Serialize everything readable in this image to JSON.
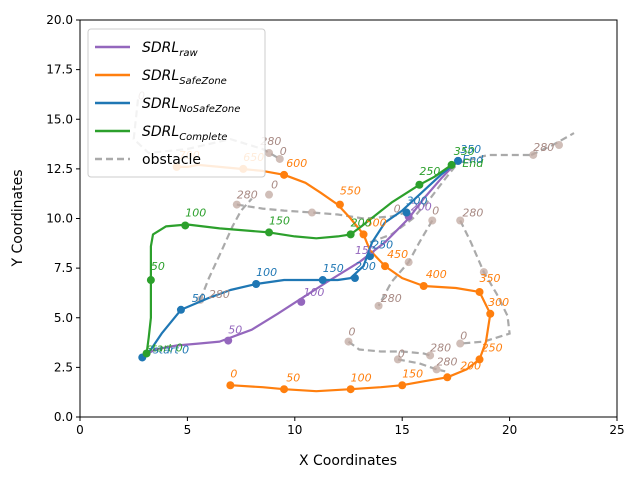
{
  "chart_data": {
    "type": "line",
    "xlabel": "X Coordinates",
    "ylabel": "Y Coordinates",
    "xlim": [
      0,
      25
    ],
    "ylim": [
      0,
      20
    ],
    "xticks": [
      "0",
      "5",
      "10",
      "15",
      "20",
      "25"
    ],
    "yticks": [
      "0.0",
      "2.5",
      "5.0",
      "7.5",
      "10.0",
      "12.5",
      "15.0",
      "17.5",
      "20.0"
    ],
    "grid": false,
    "legend": {
      "placement": "top-left",
      "entries": [
        {
          "base": "SDRL",
          "sub": "raw",
          "color": "#9467bd",
          "dash": false
        },
        {
          "base": "SDRL",
          "sub": "SafeZone",
          "color": "#ff7f0e",
          "dash": false
        },
        {
          "base": "SDRL",
          "sub": "NoSafeZone",
          "color": "#1f77b4",
          "dash": false
        },
        {
          "base": "SDRL",
          "sub": "Complete",
          "color": "#2ca02c",
          "dash": false
        },
        {
          "base": "obstacle",
          "sub": "",
          "color": "#aaaaaa",
          "dash": true
        }
      ]
    },
    "series": [
      {
        "key": "raw",
        "color": "#9467bd",
        "points": [
          [
            3.0,
            3.1
          ],
          [
            3.5,
            3.4
          ],
          [
            4.5,
            3.6
          ],
          [
            5.5,
            3.7
          ],
          [
            6.5,
            3.8
          ],
          [
            8.0,
            4.4
          ],
          [
            9.2,
            5.2
          ],
          [
            10.2,
            5.9
          ],
          [
            11.5,
            6.8
          ],
          [
            13.0,
            7.8
          ],
          [
            14.2,
            8.8
          ],
          [
            15.3,
            10.0
          ],
          [
            16.0,
            11.0
          ],
          [
            16.8,
            12.0
          ],
          [
            17.6,
            12.9
          ]
        ],
        "markers": [
          [
            6.9,
            3.85
          ],
          [
            10.3,
            5.8
          ],
          [
            15.3,
            10.1
          ],
          [
            17.6,
            12.9
          ]
        ],
        "labels": [
          {
            "t": "50",
            "x": 6.9,
            "y": 4.2
          },
          {
            "t": "100",
            "x": 10.4,
            "y": 6.1
          },
          {
            "t": "150",
            "x": 12.8,
            "y": 8.2
          },
          {
            "t": "200",
            "x": 15.4,
            "y": 10.4
          }
        ]
      },
      {
        "key": "safezone",
        "color": "#ff7f0e",
        "points": [
          [
            7.0,
            1.6
          ],
          [
            8.5,
            1.5
          ],
          [
            9.5,
            1.4
          ],
          [
            11.0,
            1.3
          ],
          [
            12.6,
            1.4
          ],
          [
            14.0,
            1.5
          ],
          [
            15.0,
            1.6
          ],
          [
            16.0,
            1.8
          ],
          [
            17.1,
            2.0
          ],
          [
            18.0,
            2.4
          ],
          [
            18.6,
            2.9
          ],
          [
            18.9,
            3.8
          ],
          [
            19.1,
            5.2
          ],
          [
            18.6,
            6.3
          ],
          [
            17.5,
            6.5
          ],
          [
            16.0,
            6.6
          ],
          [
            15.0,
            7.0
          ],
          [
            14.2,
            7.6
          ],
          [
            13.5,
            8.4
          ],
          [
            13.2,
            9.2
          ],
          [
            12.6,
            10.0
          ],
          [
            12.0,
            10.7
          ],
          [
            11.2,
            11.3
          ],
          [
            10.5,
            11.8
          ],
          [
            9.5,
            12.2
          ],
          [
            8.5,
            12.4
          ],
          [
            7.5,
            12.5
          ],
          [
            6.5,
            12.6
          ],
          [
            5.5,
            12.7
          ],
          [
            5.0,
            12.6
          ],
          [
            4.5,
            12.6
          ]
        ],
        "markers": [
          [
            7.0,
            1.6
          ],
          [
            9.5,
            1.4
          ],
          [
            12.6,
            1.4
          ],
          [
            15.0,
            1.6
          ],
          [
            17.1,
            2.0
          ],
          [
            18.6,
            2.9
          ],
          [
            19.1,
            5.2
          ],
          [
            18.6,
            6.3
          ],
          [
            16.0,
            6.6
          ],
          [
            14.2,
            7.6
          ],
          [
            13.2,
            9.2
          ],
          [
            12.1,
            10.7
          ],
          [
            9.5,
            12.2
          ],
          [
            7.6,
            12.5
          ],
          [
            4.5,
            12.6
          ]
        ],
        "labels": [
          {
            "t": "0",
            "x": 7.0,
            "y": 2.0
          },
          {
            "t": "50",
            "x": 9.6,
            "y": 1.8
          },
          {
            "t": "100",
            "x": 12.6,
            "y": 1.8
          },
          {
            "t": "150",
            "x": 15.0,
            "y": 2.0
          },
          {
            "t": "200",
            "x": 17.7,
            "y": 2.4
          },
          {
            "t": "250",
            "x": 18.7,
            "y": 3.3
          },
          {
            "t": "300",
            "x": 19.0,
            "y": 5.6
          },
          {
            "t": "350",
            "x": 18.6,
            "y": 6.8
          },
          {
            "t": "400",
            "x": 16.1,
            "y": 7.0
          },
          {
            "t": "450",
            "x": 14.3,
            "y": 8.0
          },
          {
            "t": "500",
            "x": 13.3,
            "y": 9.6
          },
          {
            "t": "550",
            "x": 12.1,
            "y": 11.2
          },
          {
            "t": "600",
            "x": 9.6,
            "y": 12.6
          },
          {
            "t": "650",
            "x": 7.6,
            "y": 12.9
          },
          {
            "t": "700",
            "x": 4.6,
            "y": 13.0
          }
        ]
      },
      {
        "key": "nosafezone",
        "color": "#1f77b4",
        "points": [
          [
            2.9,
            3.0
          ],
          [
            3.3,
            3.4
          ],
          [
            3.8,
            4.2
          ],
          [
            4.7,
            5.4
          ],
          [
            6.0,
            6.0
          ],
          [
            7.0,
            6.4
          ],
          [
            8.2,
            6.7
          ],
          [
            9.5,
            6.9
          ],
          [
            10.5,
            6.9
          ],
          [
            11.3,
            6.9
          ],
          [
            12.0,
            6.9
          ],
          [
            12.6,
            7.0
          ],
          [
            13.2,
            7.6
          ],
          [
            13.6,
            8.8
          ],
          [
            14.2,
            9.8
          ],
          [
            15.0,
            10.4
          ],
          [
            15.8,
            11.2
          ],
          [
            16.8,
            12.2
          ],
          [
            17.6,
            12.9
          ]
        ],
        "markers": [
          [
            2.9,
            3.0
          ],
          [
            4.7,
            5.4
          ],
          [
            8.2,
            6.7
          ],
          [
            11.3,
            6.9
          ],
          [
            12.8,
            7.0
          ],
          [
            13.5,
            8.1
          ],
          [
            15.2,
            10.3
          ],
          [
            17.6,
            12.9
          ]
        ],
        "labels": [
          {
            "t": "start 0",
            "x": 3.4,
            "y": 3.2
          },
          {
            "t": "50",
            "x": 5.2,
            "y": 5.8
          },
          {
            "t": "100",
            "x": 8.2,
            "y": 7.1
          },
          {
            "t": "150",
            "x": 11.3,
            "y": 7.3
          },
          {
            "t": "200",
            "x": 12.8,
            "y": 7.4
          },
          {
            "t": "250",
            "x": 13.6,
            "y": 8.5
          },
          {
            "t": "300",
            "x": 15.2,
            "y": 10.7
          },
          {
            "t": "350",
            "x": 17.7,
            "y": 13.3
          },
          {
            "t": "End",
            "x": 17.8,
            "y": 12.8
          }
        ]
      },
      {
        "key": "complete",
        "color": "#2ca02c",
        "points": [
          [
            3.1,
            3.2
          ],
          [
            3.2,
            4.0
          ],
          [
            3.3,
            5.0
          ],
          [
            3.3,
            6.5
          ],
          [
            3.3,
            7.8
          ],
          [
            3.3,
            8.6
          ],
          [
            3.4,
            9.2
          ],
          [
            4.0,
            9.6
          ],
          [
            5.0,
            9.7
          ],
          [
            6.5,
            9.5
          ],
          [
            8.8,
            9.3
          ],
          [
            10.0,
            9.1
          ],
          [
            11.0,
            9.0
          ],
          [
            12.0,
            9.1
          ],
          [
            12.6,
            9.2
          ],
          [
            13.1,
            9.6
          ],
          [
            13.8,
            10.2
          ],
          [
            14.5,
            10.8
          ],
          [
            15.8,
            11.7
          ],
          [
            16.5,
            12.1
          ],
          [
            17.3,
            12.7
          ]
        ],
        "markers": [
          [
            3.1,
            3.2
          ],
          [
            3.3,
            6.9
          ],
          [
            4.9,
            9.65
          ],
          [
            8.8,
            9.3
          ],
          [
            12.6,
            9.2
          ],
          [
            15.8,
            11.7
          ],
          [
            17.3,
            12.7
          ]
        ],
        "labels": [
          {
            "t": "start 0",
            "x": 3.1,
            "y": 3.3
          },
          {
            "t": "50",
            "x": 3.3,
            "y": 7.4
          },
          {
            "t": "100",
            "x": 4.9,
            "y": 10.1
          },
          {
            "t": "150",
            "x": 8.8,
            "y": 9.7
          },
          {
            "t": "200",
            "x": 12.6,
            "y": 9.6
          },
          {
            "t": "250",
            "x": 15.8,
            "y": 12.2
          },
          {
            "t": "350",
            "x": 17.4,
            "y": 13.2
          },
          {
            "t": "End",
            "x": 17.8,
            "y": 12.6
          }
        ]
      }
    ],
    "obstacles": [
      {
        "points": [
          [
            2.7,
            16.0
          ],
          [
            2.5,
            14.0
          ],
          [
            3.2,
            13.3
          ],
          [
            5.0,
            13.5
          ],
          [
            7.0,
            14.0
          ],
          [
            8.5,
            13.5
          ],
          [
            9.3,
            13.0
          ]
        ],
        "markers": [
          [
            9.3,
            13.0
          ],
          [
            8.8,
            13.3
          ]
        ],
        "labels": [
          {
            "t": "0",
            "x": 2.7,
            "y": 16.0
          },
          {
            "t": "280",
            "x": 8.4,
            "y": 13.7
          },
          {
            "t": "0",
            "x": 9.3,
            "y": 13.2
          }
        ]
      },
      {
        "points": [
          [
            7.3,
            10.7
          ],
          [
            8.5,
            10.5
          ],
          [
            9.5,
            10.4
          ],
          [
            10.8,
            10.3
          ],
          [
            12.0,
            10.2
          ],
          [
            13.2,
            10.0
          ],
          [
            14.5,
            10.1
          ],
          [
            15.2,
            10.3
          ]
        ],
        "markers": [
          [
            7.3,
            10.7
          ],
          [
            8.8,
            11.2
          ],
          [
            10.8,
            10.3
          ],
          [
            15.2,
            10.3
          ]
        ],
        "labels": [
          {
            "t": "280",
            "x": 7.3,
            "y": 11.0
          },
          {
            "t": "0",
            "x": 8.9,
            "y": 11.5
          },
          {
            "t": "0",
            "x": 14.6,
            "y": 10.3
          }
        ]
      },
      {
        "points": [
          [
            21.0,
            13.2
          ],
          [
            22.0,
            13.7
          ],
          [
            23.0,
            14.3
          ]
        ],
        "markers": [
          [
            21.1,
            13.2
          ],
          [
            22.3,
            13.7
          ]
        ],
        "labels": [
          {
            "t": "280",
            "x": 21.1,
            "y": 13.4
          }
        ]
      },
      {
        "points": [
          [
            13.5,
            8.8
          ],
          [
            14.5,
            9.2
          ],
          [
            15.5,
            10.0
          ],
          [
            16.3,
            11.0
          ],
          [
            17.0,
            12.0
          ],
          [
            17.6,
            12.8
          ],
          [
            19.0,
            13.2
          ],
          [
            21.1,
            13.2
          ]
        ],
        "markers": [],
        "labels": []
      },
      {
        "points": [
          [
            16.4,
            9.9
          ],
          [
            15.8,
            8.8
          ],
          [
            15.3,
            7.8
          ],
          [
            14.5,
            6.8
          ],
          [
            13.9,
            5.6
          ]
        ],
        "markers": [
          [
            16.4,
            9.9
          ],
          [
            15.3,
            7.8
          ],
          [
            13.9,
            5.6
          ]
        ],
        "labels": [
          {
            "t": "0",
            "x": 16.4,
            "y": 10.2
          },
          {
            "t": "280",
            "x": 14.0,
            "y": 5.8
          }
        ]
      },
      {
        "points": [
          [
            17.7,
            9.9
          ],
          [
            18.2,
            8.8
          ],
          [
            18.8,
            7.3
          ],
          [
            19.4,
            6.2
          ],
          [
            19.9,
            5.1
          ],
          [
            20.0,
            4.2
          ],
          [
            18.8,
            3.8
          ],
          [
            17.7,
            3.7
          ]
        ],
        "markers": [
          [
            17.7,
            9.9
          ],
          [
            18.8,
            7.3
          ],
          [
            17.7,
            3.7
          ]
        ],
        "labels": [
          {
            "t": "280",
            "x": 17.8,
            "y": 10.1
          },
          {
            "t": "0",
            "x": 17.7,
            "y": 3.9
          }
        ]
      },
      {
        "points": [
          [
            12.5,
            3.8
          ],
          [
            13.0,
            3.4
          ],
          [
            14.0,
            3.3
          ],
          [
            15.0,
            3.3
          ],
          [
            16.0,
            3.2
          ],
          [
            16.3,
            3.1
          ]
        ],
        "markers": [
          [
            12.5,
            3.8
          ],
          [
            16.3,
            3.1
          ]
        ],
        "labels": [
          {
            "t": "0",
            "x": 12.5,
            "y": 4.1
          },
          {
            "t": "280",
            "x": 16.3,
            "y": 3.3
          }
        ]
      },
      {
        "points": [
          [
            14.8,
            2.9
          ],
          [
            15.8,
            2.7
          ],
          [
            16.6,
            2.4
          ],
          [
            17.0,
            2.3
          ]
        ],
        "markers": [
          [
            14.8,
            2.9
          ],
          [
            16.6,
            2.4
          ]
        ],
        "labels": [
          {
            "t": "0",
            "x": 14.8,
            "y": 3.0
          },
          {
            "t": "280",
            "x": 16.6,
            "y": 2.6
          }
        ]
      },
      {
        "points": [
          [
            5.6,
            5.9
          ],
          [
            6.0,
            7.0
          ],
          [
            6.6,
            8.4
          ],
          [
            7.1,
            9.6
          ],
          [
            7.5,
            10.4
          ],
          [
            8.0,
            11.0
          ]
        ],
        "markers": [
          [
            5.6,
            5.9
          ]
        ],
        "labels": [
          {
            "t": "280",
            "x": 6.0,
            "y": 6.0
          }
        ]
      }
    ]
  }
}
